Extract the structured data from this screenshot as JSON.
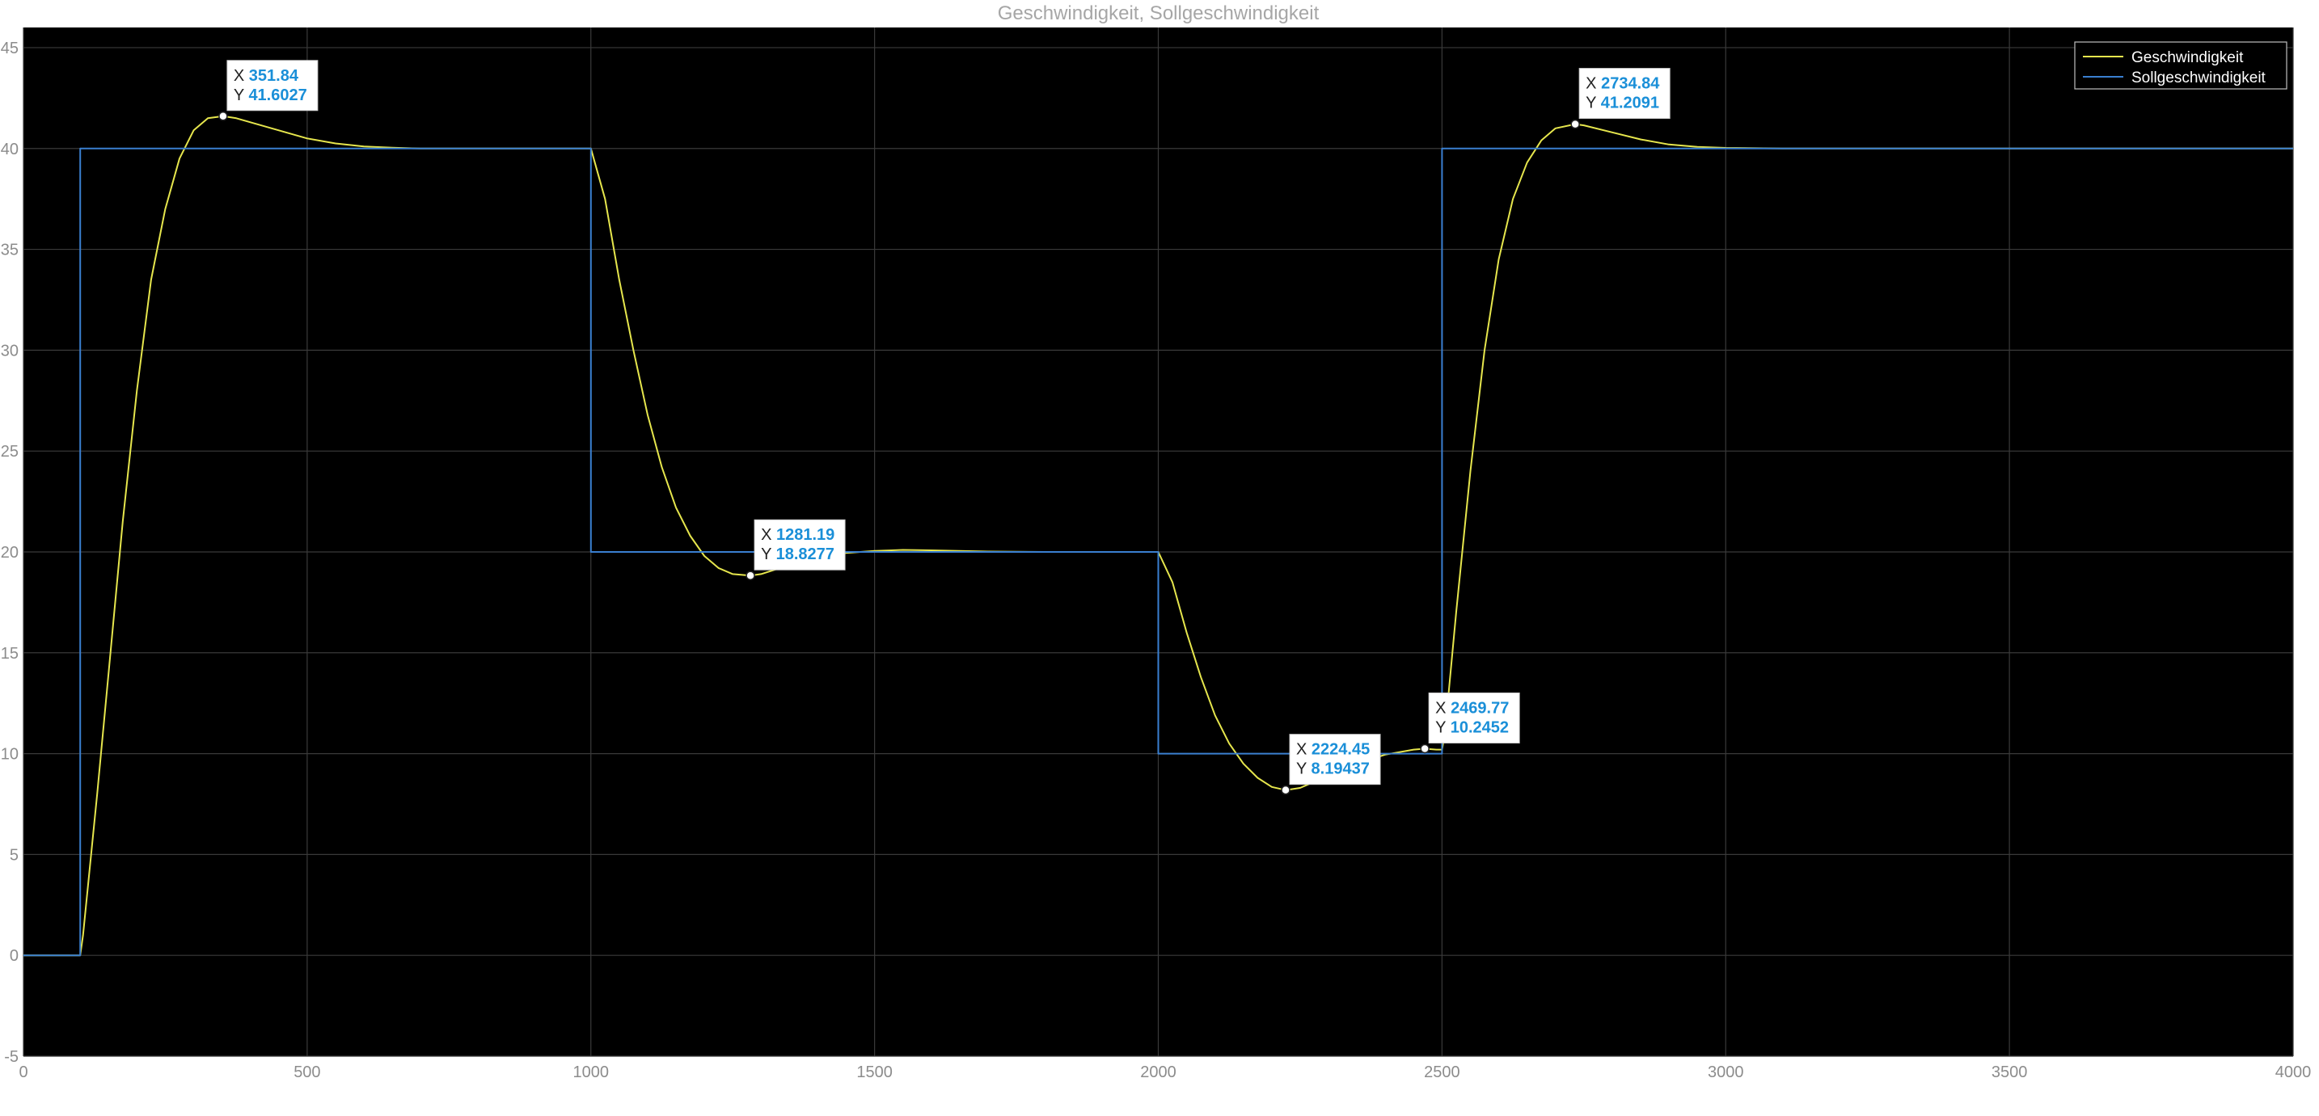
{
  "chart_data": {
    "type": "line",
    "title": "Geschwindigkeit, Sollgeschwindigkeit",
    "xlabel": "",
    "ylabel": "",
    "xlim": [
      0,
      4000
    ],
    "ylim": [
      -5,
      46
    ],
    "x_ticks": [
      0,
      500,
      1000,
      1500,
      2000,
      2500,
      3000,
      3500,
      4000
    ],
    "y_ticks": [
      -5,
      0,
      5,
      10,
      15,
      20,
      25,
      30,
      35,
      40,
      45
    ],
    "grid": true,
    "legend_position": "top-right",
    "background_color": "#000000",
    "grid_color": "#3a3a3a",
    "series": [
      {
        "name": "Geschwindigkeit",
        "color": "#e6e64d",
        "x": [
          0,
          100,
          105,
          130,
          150,
          175,
          200,
          225,
          250,
          275,
          300,
          325,
          351.84,
          375,
          400,
          450,
          500,
          550,
          600,
          650,
          700,
          800,
          900,
          1000,
          1025,
          1050,
          1075,
          1100,
          1125,
          1150,
          1175,
          1200,
          1225,
          1250,
          1281.19,
          1300,
          1350,
          1400,
          1450,
          1500,
          1550,
          1600,
          1700,
          1800,
          1900,
          2000,
          2025,
          2050,
          2075,
          2100,
          2125,
          2150,
          2175,
          2200,
          2224.45,
          2250,
          2300,
          2350,
          2400,
          2450,
          2469.77,
          2490,
          2500,
          2505,
          2525,
          2550,
          2575,
          2600,
          2625,
          2650,
          2675,
          2700,
          2734.84,
          2750,
          2800,
          2850,
          2900,
          2950,
          3000,
          3100,
          3200,
          3300,
          4000
        ],
        "y": [
          0,
          0,
          1.0,
          8.0,
          14.0,
          21.5,
          28.0,
          33.5,
          37.0,
          39.5,
          40.9,
          41.5,
          41.6027,
          41.5,
          41.3,
          40.9,
          40.5,
          40.25,
          40.1,
          40.04,
          40.0,
          40.0,
          40.0,
          40.0,
          37.5,
          33.5,
          30.0,
          26.8,
          24.2,
          22.2,
          20.8,
          19.8,
          19.2,
          18.9,
          18.8277,
          18.9,
          19.35,
          19.75,
          19.95,
          20.05,
          20.1,
          20.08,
          20.02,
          20.0,
          20.0,
          20.0,
          18.5,
          16.0,
          13.8,
          11.9,
          10.5,
          9.5,
          8.8,
          8.35,
          8.19437,
          8.3,
          8.9,
          9.5,
          9.95,
          10.2,
          10.2452,
          10.2,
          10.2,
          11.0,
          17.0,
          24.0,
          30.0,
          34.5,
          37.5,
          39.3,
          40.4,
          41.0,
          41.2091,
          41.15,
          40.8,
          40.45,
          40.2,
          40.08,
          40.03,
          40.0,
          40.0,
          40.0,
          40.0
        ]
      },
      {
        "name": "Sollgeschwindigkeit",
        "color": "#3a7fd0",
        "x": [
          0,
          100,
          100,
          1000,
          1000,
          2000,
          2000,
          2500,
          2500,
          4000
        ],
        "y": [
          0,
          0,
          40,
          40,
          20,
          20,
          10,
          10,
          40,
          40
        ]
      }
    ],
    "datatips": [
      {
        "x_label": "X",
        "y_label": "Y",
        "x": "351.84",
        "y": "41.6027"
      },
      {
        "x_label": "X",
        "y_label": "Y",
        "x": "1281.19",
        "y": "18.8277"
      },
      {
        "x_label": "X",
        "y_label": "Y",
        "x": "2224.45",
        "y": "8.19437"
      },
      {
        "x_label": "X",
        "y_label": "Y",
        "x": "2469.77",
        "y": "10.2452"
      },
      {
        "x_label": "X",
        "y_label": "Y",
        "x": "2734.84",
        "y": "41.2091"
      }
    ]
  }
}
